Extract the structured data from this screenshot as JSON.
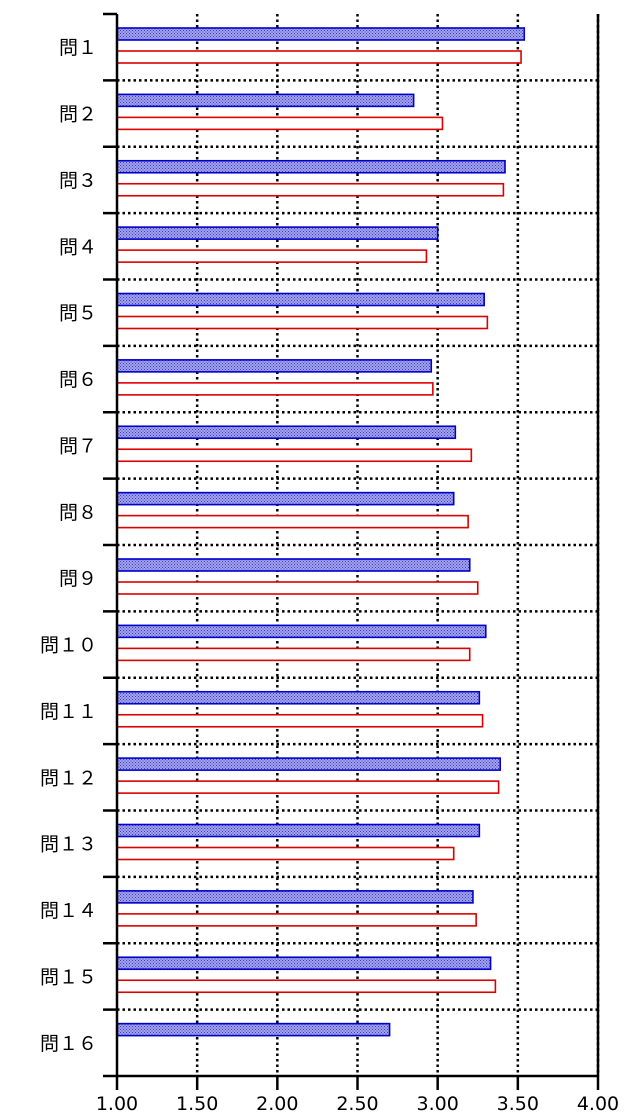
{
  "chart_data": {
    "type": "bar",
    "orientation": "horizontal",
    "categories": [
      "問１",
      "問２",
      "問３",
      "問４",
      "問５",
      "問６",
      "問７",
      "問８",
      "問９",
      "問１０",
      "問１１",
      "問１２",
      "問１３",
      "問１４",
      "問１５",
      "問１６"
    ],
    "series": [
      {
        "values": [
          3.54,
          2.85,
          3.42,
          3.0,
          3.29,
          2.96,
          3.11,
          3.1,
          3.2,
          3.3,
          3.26,
          3.39,
          3.26,
          3.22,
          3.33,
          2.7
        ],
        "color": "#0000cc",
        "fill": "#8c8ce0"
      },
      {
        "values": [
          3.52,
          3.03,
          3.41,
          2.93,
          3.31,
          2.97,
          3.21,
          3.19,
          3.25,
          3.2,
          3.28,
          3.38,
          3.1,
          3.24,
          3.36,
          null
        ],
        "color": "#dd0000",
        "fill": "#ffffff"
      }
    ],
    "xlim": [
      1.0,
      4.0
    ],
    "xticks": [
      "1.00",
      "1.50",
      "2.00",
      "2.50",
      "3.00",
      "3.50",
      "4.00"
    ],
    "grid": true
  }
}
